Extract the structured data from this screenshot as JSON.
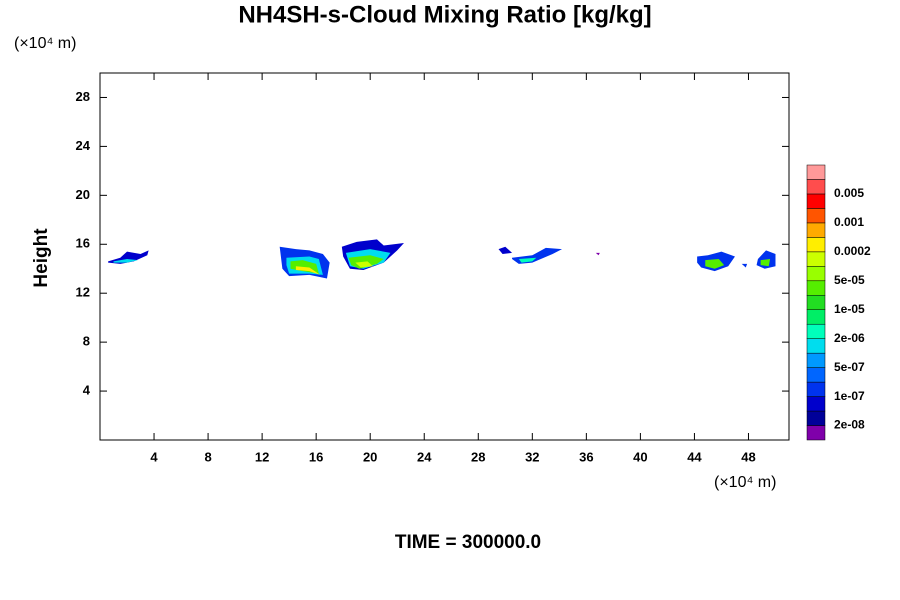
{
  "chart_data": {
    "type": "contour",
    "title": "NH4SH-s-Cloud Mixing Ratio [kg/kg]",
    "y_unit": "(×10⁴ m)",
    "x_unit": "(×10⁴ m)",
    "ylabel": "Height",
    "time_label": "TIME = 300000.0",
    "xlim": [
      0,
      51
    ],
    "ylim": [
      0,
      30
    ],
    "xticks": [
      4,
      8,
      12,
      16,
      20,
      24,
      28,
      32,
      36,
      40,
      44,
      48
    ],
    "yticks": [
      4,
      8,
      12,
      16,
      20,
      24,
      28
    ],
    "colorbar": {
      "colors": [
        "#7f00aa",
        "#000099",
        "#0000cc",
        "#0033ee",
        "#0066ff",
        "#0099ff",
        "#00ddee",
        "#00ffbb",
        "#00ee66",
        "#22dd22",
        "#55ee00",
        "#99ff00",
        "#ccff00",
        "#ffee00",
        "#ffaa00",
        "#ff5500",
        "#ff0000",
        "#ff4d4d",
        "#ff9999"
      ],
      "labels": [
        {
          "value": 2e-08,
          "label": "2e-08"
        },
        {
          "value": 1e-07,
          "label": "1e-07"
        },
        {
          "value": 5e-07,
          "label": "5e-07"
        },
        {
          "value": 2e-06,
          "label": "2e-06"
        },
        {
          "value": 1e-05,
          "label": "1e-05"
        },
        {
          "value": 5e-05,
          "label": "5e-05"
        },
        0.0002,
        0.001,
        0.005
      ]
    },
    "contours": [
      {
        "color": "#0000cc",
        "x": [
          0.6,
          1.5,
          2,
          3,
          3.6,
          3.5,
          2.5,
          1.5,
          0.6
        ],
        "y": [
          14.6,
          14.9,
          15.4,
          15.2,
          15.5,
          15.1,
          14.6,
          14.4,
          14.5
        ]
      },
      {
        "color": "#00ddee",
        "x": [
          1,
          2,
          2.8,
          2,
          1
        ],
        "y": [
          14.6,
          14.8,
          14.7,
          14.5,
          14.5
        ]
      },
      {
        "color": "#0033ee",
        "x": [
          13.3,
          14.5,
          15.5,
          16.5,
          17,
          16.8,
          15.5,
          14,
          13.5
        ],
        "y": [
          15.8,
          15.6,
          15.5,
          15.2,
          14.5,
          13.2,
          13.5,
          13.4,
          14
        ]
      },
      {
        "color": "#00ddee",
        "x": [
          13.8,
          15.5,
          16.2,
          16.5,
          15.5,
          14,
          13.8
        ],
        "y": [
          14.9,
          15,
          14.8,
          13.5,
          13.6,
          13.6,
          14.3
        ]
      },
      {
        "color": "#55ee00",
        "x": [
          14.1,
          15,
          16,
          16.2,
          15,
          14.1
        ],
        "y": [
          14.6,
          14.7,
          14.4,
          13.6,
          13.8,
          14
        ]
      },
      {
        "color": "#ffee00",
        "x": [
          14.5,
          15.5,
          16.3,
          15.5,
          14.5
        ],
        "y": [
          14.2,
          14.1,
          13.5,
          13.8,
          13.9
        ]
      },
      {
        "color": "#0000cc",
        "x": [
          17.9,
          19,
          20.5,
          21,
          22.5,
          22,
          21,
          19.5,
          18.5,
          18
        ],
        "y": [
          15.8,
          16.2,
          16.4,
          15.9,
          16.1,
          15.5,
          14.5,
          13.9,
          14,
          15
        ]
      },
      {
        "color": "#00ddee",
        "x": [
          18.2,
          20,
          21.5,
          21,
          19.5,
          18.5
        ],
        "y": [
          15.3,
          15.6,
          15.3,
          14.5,
          14,
          14.2
        ]
      },
      {
        "color": "#55ee00",
        "x": [
          18.4,
          20,
          21,
          20.5,
          19.2,
          18.6
        ],
        "y": [
          14.9,
          15.1,
          14.8,
          14.4,
          14,
          14.3
        ]
      },
      {
        "color": "#ccff00",
        "x": [
          18.9,
          19.8,
          20.2,
          19.3
        ],
        "y": [
          14.5,
          14.6,
          14.2,
          14.1
        ]
      },
      {
        "color": "#0000cc",
        "x": [
          29.5,
          30,
          30.5,
          29.8
        ],
        "y": [
          15.6,
          15.8,
          15.3,
          15.2
        ]
      },
      {
        "color": "#0033ee",
        "x": [
          30.5,
          32,
          33,
          34.2,
          33.5,
          32,
          31,
          30.5
        ],
        "y": [
          14.9,
          15.1,
          15.7,
          15.6,
          15.2,
          14.5,
          14.4,
          14.8
        ]
      },
      {
        "color": "#00ffbb",
        "x": [
          31,
          32.3,
          32,
          31.2
        ],
        "y": [
          14.8,
          14.9,
          14.6,
          14.5
        ]
      },
      {
        "color": "#7f00aa",
        "x": [
          36.7,
          37,
          36.9
        ],
        "y": [
          15.3,
          15.3,
          15.1
        ]
      },
      {
        "color": "#0033ee",
        "x": [
          44.2,
          45,
          46,
          47,
          46.5,
          45.5,
          44.5,
          44.2
        ],
        "y": [
          15,
          15.1,
          15.4,
          15,
          14.2,
          13.8,
          14.1,
          14.5
        ]
      },
      {
        "color": "#55ee00",
        "x": [
          44.8,
          45.8,
          46.2,
          45.5,
          44.8
        ],
        "y": [
          14.7,
          14.8,
          14.3,
          14,
          14.2
        ]
      },
      {
        "color": "#0033ee",
        "x": [
          47.5,
          47.9,
          47.8
        ],
        "y": [
          14.4,
          14.4,
          14.1
        ]
      },
      {
        "color": "#0033ee",
        "x": [
          48.7,
          49.3,
          50,
          50,
          49.2,
          48.6
        ],
        "y": [
          14.8,
          15.5,
          15.2,
          14.2,
          14,
          14.3
        ]
      },
      {
        "color": "#55ee00",
        "x": [
          48.9,
          49.6,
          49.5,
          48.9
        ],
        "y": [
          14.7,
          14.8,
          14.2,
          14.3
        ]
      }
    ]
  }
}
